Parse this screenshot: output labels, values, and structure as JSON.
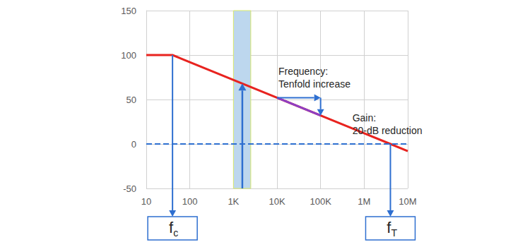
{
  "chart_data": {
    "type": "line",
    "log": "x",
    "grid": true,
    "xlim": [
      10,
      10000000
    ],
    "xticks": [
      10,
      100,
      {
        "value": 1000,
        "label": "1K"
      },
      {
        "value": 10000,
        "label": "10K"
      },
      {
        "value": 100000,
        "label": "100K"
      },
      {
        "value": 1000000,
        "label": "1M"
      },
      {
        "value": 10000000,
        "label": "10M"
      }
    ],
    "ylim": [
      -50,
      150
    ],
    "yticks": [
      -50,
      0,
      50,
      100,
      150
    ],
    "series": [
      {
        "x": [
          10,
          40,
          4000000,
          10000000
        ],
        "values": [
          100,
          100,
          0,
          -8
        ],
        "color": "#e8231f",
        "line_style": "solid"
      },
      {
        "x": [
          10000,
          100000
        ],
        "values": [
          52,
          32
        ],
        "color": "#8e3fc4",
        "line_style": "solid"
      }
    ],
    "reference_lines": [
      {
        "y": 0,
        "color": "#2e6fd0",
        "line_style": "dashed"
      }
    ],
    "band": {
      "x": [
        1000,
        2500
      ],
      "color": "#bdd7ee",
      "arrow": {
        "x": 1600,
        "y": [
          -50,
          68
        ]
      }
    },
    "annotations": [
      {
        "text": "Frequency:\nTenfold increase",
        "arrow": {
          "x": [
            10000,
            100000
          ],
          "y": [
            52,
            52
          ]
        }
      },
      {
        "text": "Gain:\n20-dB reduction",
        "arrow": {
          "x": [
            100000,
            100000
          ],
          "y": [
            52,
            32
          ]
        }
      }
    ],
    "markers": [
      {
        "label": "fc",
        "x": 40,
        "y": 100
      },
      {
        "label": "fT",
        "x": 4000000,
        "y": 0
      }
    ]
  }
}
